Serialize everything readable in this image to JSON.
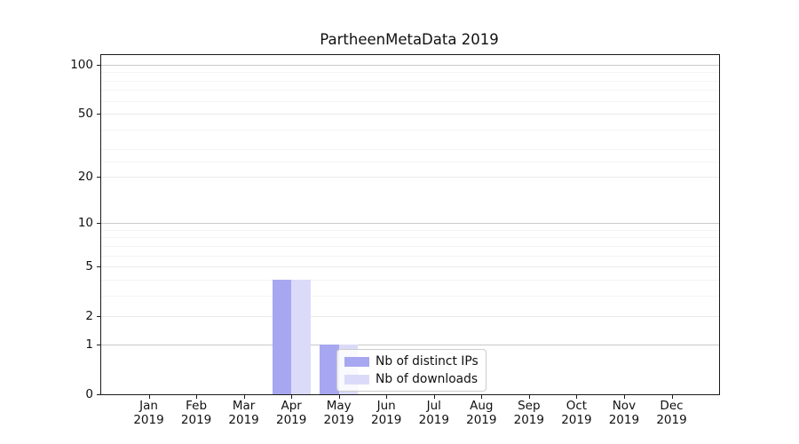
{
  "title": "PartheenMetaData 2019",
  "legend": {
    "items": [
      {
        "label": "Nb of distinct IPs",
        "color": "#a7a7f1"
      },
      {
        "label": "Nb of downloads",
        "color": "#dbdbf9"
      }
    ]
  },
  "chart_data": {
    "type": "bar",
    "title": "PartheenMetaData 2019",
    "months": [
      "Jan",
      "Feb",
      "Mar",
      "Apr",
      "May",
      "Jun",
      "Jul",
      "Aug",
      "Sep",
      "Oct",
      "Nov",
      "Dec"
    ],
    "year": "2019",
    "series": [
      {
        "name": "Nb of distinct IPs",
        "color": "#a7a7f1",
        "values": [
          0,
          0,
          0,
          4,
          1,
          0,
          0,
          0,
          0,
          0,
          0,
          0
        ]
      },
      {
        "name": "Nb of downloads",
        "color": "#dbdbf9",
        "values": [
          0,
          0,
          0,
          4,
          1,
          0,
          0,
          0,
          0,
          0,
          0,
          0
        ]
      }
    ],
    "yscale": "log1p",
    "ylim": [
      0,
      115
    ],
    "y_tick_values": [
      0,
      1,
      2,
      5,
      10,
      20,
      50,
      100
    ],
    "y_grid_power_ticks": [
      1,
      10,
      100
    ],
    "y_grid_mid_ticks": [
      2,
      5,
      20,
      50
    ],
    "y_grid_minor_ticks": [
      3,
      4,
      6,
      7,
      8,
      9,
      25,
      30,
      40,
      60,
      70,
      80,
      90
    ],
    "grid": "on",
    "legend_position": "lower-center-inside",
    "bar_group": "two bars per month flanking the tick"
  }
}
